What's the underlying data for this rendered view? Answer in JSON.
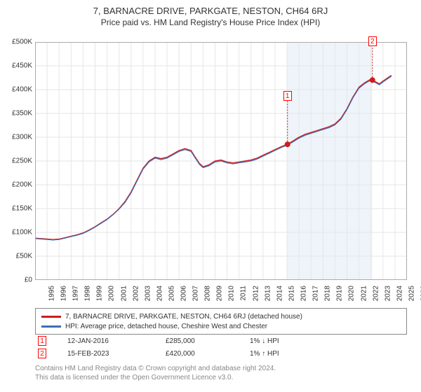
{
  "title": {
    "main": "7, BARNACRE DRIVE, PARKGATE, NESTON, CH64 6RJ",
    "sub": "Price paid vs. HM Land Registry's House Price Index (HPI)",
    "main_fontsize": 13,
    "sub_fontsize": 12
  },
  "chart": {
    "type": "line",
    "background_color": "#ffffff",
    "plot_border_color": "#aaaaaa",
    "grid_color": "#e6e6e6",
    "shade": {
      "from_year": 2016,
      "to_year": 2023.12,
      "color": "#eef4f9"
    },
    "xlim": [
      1995,
      2026
    ],
    "ylim": [
      0,
      500000
    ],
    "ytick_step": 50000,
    "yticks": [
      "£0",
      "£50K",
      "£100K",
      "£150K",
      "£200K",
      "£250K",
      "£300K",
      "£350K",
      "£400K",
      "£450K",
      "£500K"
    ],
    "xticks": [
      1995,
      1996,
      1997,
      1998,
      1999,
      2000,
      2001,
      2002,
      2003,
      2004,
      2005,
      2006,
      2007,
      2008,
      2009,
      2010,
      2011,
      2012,
      2013,
      2014,
      2015,
      2016,
      2017,
      2018,
      2019,
      2020,
      2021,
      2022,
      2023,
      2024,
      2025,
      2026
    ],
    "label_fontsize": 10,
    "series": [
      {
        "name": "7, BARNACRE DRIVE, PARKGATE, NESTON, CH64 6RJ (detached house)",
        "color": "#d01c1c",
        "line_width": 1.4,
        "points": [
          [
            1995,
            88000
          ],
          [
            1995.5,
            87000
          ],
          [
            1996,
            86000
          ],
          [
            1996.5,
            85000
          ],
          [
            1997,
            86000
          ],
          [
            1997.5,
            89000
          ],
          [
            1998,
            92000
          ],
          [
            1998.5,
            95000
          ],
          [
            1999,
            99000
          ],
          [
            1999.5,
            105000
          ],
          [
            2000,
            112000
          ],
          [
            2000.5,
            120000
          ],
          [
            2001,
            128000
          ],
          [
            2001.5,
            138000
          ],
          [
            2002,
            150000
          ],
          [
            2002.5,
            165000
          ],
          [
            2003,
            185000
          ],
          [
            2003.5,
            210000
          ],
          [
            2004,
            235000
          ],
          [
            2004.5,
            250000
          ],
          [
            2005,
            258000
          ],
          [
            2005.5,
            255000
          ],
          [
            2006,
            258000
          ],
          [
            2006.5,
            265000
          ],
          [
            2007,
            272000
          ],
          [
            2007.5,
            276000
          ],
          [
            2008,
            272000
          ],
          [
            2008.3,
            260000
          ],
          [
            2008.7,
            245000
          ],
          [
            2009,
            238000
          ],
          [
            2009.5,
            242000
          ],
          [
            2010,
            250000
          ],
          [
            2010.5,
            252000
          ],
          [
            2011,
            248000
          ],
          [
            2011.5,
            246000
          ],
          [
            2012,
            248000
          ],
          [
            2012.5,
            250000
          ],
          [
            2013,
            252000
          ],
          [
            2013.5,
            256000
          ],
          [
            2014,
            262000
          ],
          [
            2014.5,
            268000
          ],
          [
            2015,
            274000
          ],
          [
            2015.5,
            280000
          ],
          [
            2016,
            285000
          ],
          [
            2016.5,
            292000
          ],
          [
            2017,
            300000
          ],
          [
            2017.5,
            306000
          ],
          [
            2018,
            310000
          ],
          [
            2018.5,
            314000
          ],
          [
            2019,
            318000
          ],
          [
            2019.5,
            322000
          ],
          [
            2020,
            328000
          ],
          [
            2020.5,
            340000
          ],
          [
            2021,
            360000
          ],
          [
            2021.5,
            385000
          ],
          [
            2022,
            405000
          ],
          [
            2022.5,
            415000
          ],
          [
            2023,
            422000
          ],
          [
            2023.12,
            420000
          ],
          [
            2023.7,
            412000
          ],
          [
            2024,
            418000
          ],
          [
            2024.7,
            430000
          ]
        ]
      },
      {
        "name": "HPI: Average price, detached house, Cheshire West and Chester",
        "color": "#3b6fb6",
        "line_width": 1.2,
        "points": [
          [
            1995,
            87000
          ],
          [
            1995.5,
            86000
          ],
          [
            1996,
            85000
          ],
          [
            1996.5,
            84000
          ],
          [
            1997,
            85000
          ],
          [
            1997.5,
            88000
          ],
          [
            1998,
            91000
          ],
          [
            1998.5,
            94000
          ],
          [
            1999,
            98000
          ],
          [
            1999.5,
            104000
          ],
          [
            2000,
            111000
          ],
          [
            2000.5,
            119000
          ],
          [
            2001,
            127000
          ],
          [
            2001.5,
            137000
          ],
          [
            2002,
            149000
          ],
          [
            2002.5,
            163000
          ],
          [
            2003,
            183000
          ],
          [
            2003.5,
            208000
          ],
          [
            2004,
            233000
          ],
          [
            2004.5,
            248000
          ],
          [
            2005,
            256000
          ],
          [
            2005.5,
            253000
          ],
          [
            2006,
            256000
          ],
          [
            2006.5,
            263000
          ],
          [
            2007,
            270000
          ],
          [
            2007.5,
            274000
          ],
          [
            2008,
            270000
          ],
          [
            2008.3,
            258000
          ],
          [
            2008.7,
            243000
          ],
          [
            2009,
            236000
          ],
          [
            2009.5,
            240000
          ],
          [
            2010,
            248000
          ],
          [
            2010.5,
            250000
          ],
          [
            2011,
            246000
          ],
          [
            2011.5,
            244000
          ],
          [
            2012,
            246000
          ],
          [
            2012.5,
            248000
          ],
          [
            2013,
            250000
          ],
          [
            2013.5,
            254000
          ],
          [
            2014,
            260000
          ],
          [
            2014.5,
            266000
          ],
          [
            2015,
            272000
          ],
          [
            2015.5,
            278000
          ],
          [
            2016,
            283000
          ],
          [
            2016.5,
            290000
          ],
          [
            2017,
            298000
          ],
          [
            2017.5,
            304000
          ],
          [
            2018,
            308000
          ],
          [
            2018.5,
            312000
          ],
          [
            2019,
            316000
          ],
          [
            2019.5,
            320000
          ],
          [
            2020,
            326000
          ],
          [
            2020.5,
            338000
          ],
          [
            2021,
            358000
          ],
          [
            2021.5,
            383000
          ],
          [
            2022,
            403000
          ],
          [
            2022.5,
            413000
          ],
          [
            2023,
            420000
          ],
          [
            2023.12,
            418000
          ],
          [
            2023.7,
            410000
          ],
          [
            2024,
            416000
          ],
          [
            2024.7,
            428000
          ]
        ]
      }
    ],
    "markers": [
      {
        "id": "1",
        "year": 2016.04,
        "price": 285000,
        "label_y_offset": -76
      },
      {
        "id": "2",
        "year": 2023.12,
        "price": 420000,
        "label_y_offset": -62
      }
    ],
    "marker_style": {
      "radius": 4,
      "fill": "#d01c1c",
      "border_color": "#d01c1c",
      "box_bg": "#ffffff"
    }
  },
  "legend": {
    "border_color": "#888888",
    "items": [
      {
        "color": "#d01c1c",
        "label": "7, BARNACRE DRIVE, PARKGATE, NESTON, CH64 6RJ (detached house)"
      },
      {
        "color": "#3b6fb6",
        "label": "HPI: Average price, detached house, Cheshire West and Chester"
      }
    ]
  },
  "transactions": [
    {
      "id": "1",
      "date": "12-JAN-2016",
      "price": "£285,000",
      "hpi": "1% ↓ HPI"
    },
    {
      "id": "2",
      "date": "15-FEB-2023",
      "price": "£420,000",
      "hpi": "1% ↑ HPI"
    }
  ],
  "footer": {
    "line1": "Contains HM Land Registry data © Crown copyright and database right 2024.",
    "line2": "This data is licensed under the Open Government Licence v3.0."
  }
}
